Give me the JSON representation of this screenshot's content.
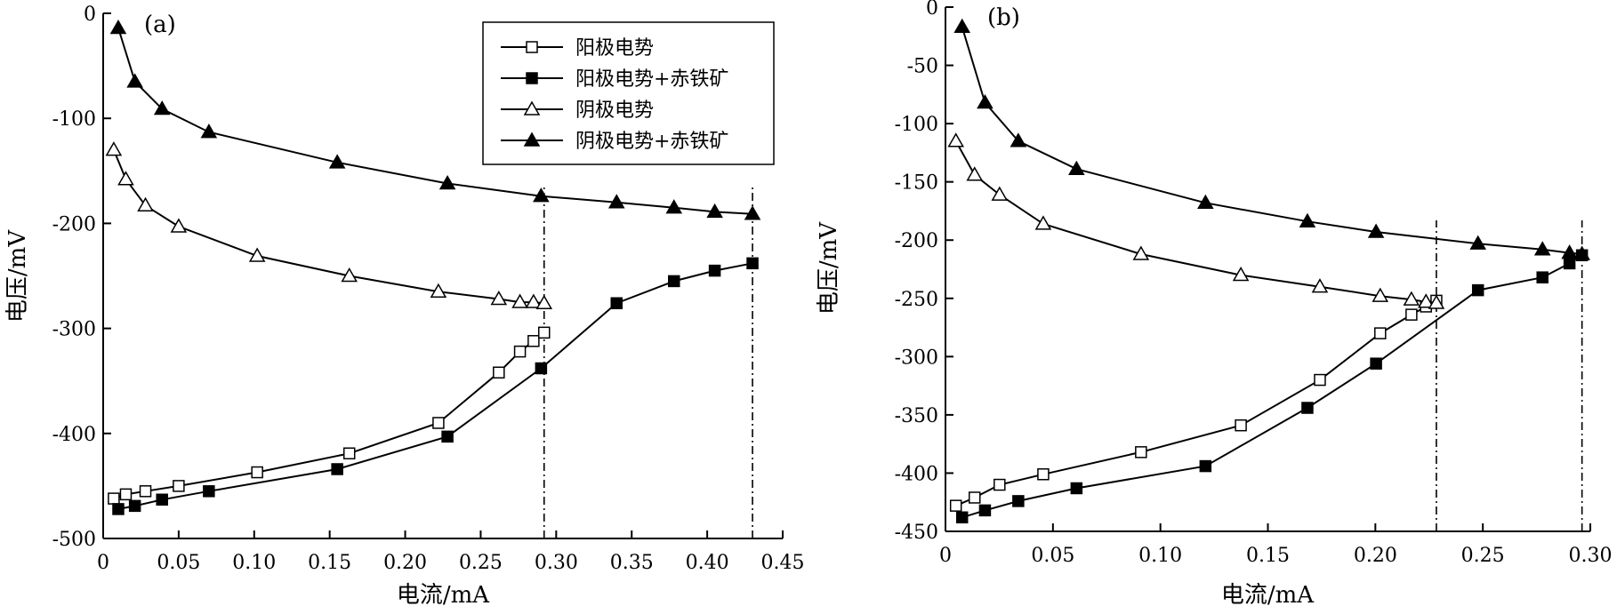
{
  "chart_data": [
    {
      "type": "line",
      "panel_label": "(a)",
      "xlabel": "电流/mA",
      "ylabel": "电压/mV",
      "xlim": [
        0,
        0.45
      ],
      "ylim": [
        -500,
        0
      ],
      "xticks": [
        "0",
        "0.05",
        "0.10",
        "0.15",
        "0.20",
        "0.25",
        "0.30",
        "0.35",
        "0.40",
        "0.45"
      ],
      "yticks": [
        "0",
        "-100",
        "-200",
        "-300",
        "-400",
        "-500"
      ],
      "legend": {
        "position": "top-right"
      },
      "series": [
        {
          "name": "阳极电势",
          "marker": "square-open",
          "points": [
            [
              0.007,
              -462
            ],
            [
              0.015,
              -458
            ],
            [
              0.028,
              -455
            ],
            [
              0.05,
              -450
            ],
            [
              0.102,
              -437
            ],
            [
              0.163,
              -419
            ],
            [
              0.222,
              -390
            ],
            [
              0.262,
              -342
            ],
            [
              0.276,
              -322
            ],
            [
              0.285,
              -312
            ],
            [
              0.292,
              -304
            ]
          ]
        },
        {
          "name": "阳极电势+赤铁矿",
          "marker": "square-filled",
          "points": [
            [
              0.01,
              -472
            ],
            [
              0.021,
              -469
            ],
            [
              0.039,
              -463
            ],
            [
              0.07,
              -455
            ],
            [
              0.155,
              -434
            ],
            [
              0.228,
              -403
            ],
            [
              0.29,
              -338
            ],
            [
              0.34,
              -276
            ],
            [
              0.378,
              -255
            ],
            [
              0.405,
              -245
            ],
            [
              0.43,
              -238
            ]
          ]
        },
        {
          "name": "阴极电势",
          "marker": "triangle-open",
          "points": [
            [
              0.007,
              -130
            ],
            [
              0.015,
              -158
            ],
            [
              0.028,
              -183
            ],
            [
              0.05,
              -203
            ],
            [
              0.102,
              -231
            ],
            [
              0.163,
              -250
            ],
            [
              0.222,
              -265
            ],
            [
              0.262,
              -272
            ],
            [
              0.276,
              -275
            ],
            [
              0.285,
              -275
            ],
            [
              0.292,
              -276
            ]
          ]
        },
        {
          "name": "阴极电势+赤铁矿",
          "marker": "triangle-filled",
          "points": [
            [
              0.01,
              -14
            ],
            [
              0.021,
              -65
            ],
            [
              0.039,
              -91
            ],
            [
              0.07,
              -113
            ],
            [
              0.155,
              -142
            ],
            [
              0.228,
              -162
            ],
            [
              0.29,
              -174
            ],
            [
              0.34,
              -180
            ],
            [
              0.378,
              -185
            ],
            [
              0.405,
              -189
            ],
            [
              0.43,
              -191
            ]
          ]
        }
      ],
      "reference_lines_x": [
        0.292,
        0.43
      ]
    },
    {
      "type": "line",
      "panel_label": "(b)",
      "xlabel": "电流/mA",
      "ylabel": "电压/mV",
      "xlim": [
        0,
        0.31
      ],
      "ylim": [
        -450,
        0
      ],
      "xticks": [
        "0",
        "0.05",
        "0.10",
        "0.15",
        "0.20",
        "0.25",
        "0.30"
      ],
      "yticks": [
        "0",
        "-50",
        "-100",
        "-150",
        "-200",
        "-250",
        "-300",
        "-350",
        "-400",
        "-450"
      ],
      "series": [
        {
          "name": "阳极电势",
          "marker": "square-open",
          "points": [
            [
              0.005,
              -428
            ],
            [
              0.014,
              -421
            ],
            [
              0.026,
              -410
            ],
            [
              0.047,
              -401
            ],
            [
              0.094,
              -382
            ],
            [
              0.142,
              -359
            ],
            [
              0.18,
              -320
            ],
            [
              0.209,
              -280
            ],
            [
              0.224,
              -264
            ],
            [
              0.231,
              -257
            ],
            [
              0.236,
              -252
            ]
          ]
        },
        {
          "name": "阳极电势+赤铁矿",
          "marker": "square-filled",
          "points": [
            [
              0.008,
              -438
            ],
            [
              0.019,
              -432
            ],
            [
              0.035,
              -424
            ],
            [
              0.063,
              -413
            ],
            [
              0.125,
              -394
            ],
            [
              0.174,
              -344
            ],
            [
              0.207,
              -306
            ],
            [
              0.256,
              -243
            ],
            [
              0.287,
              -232
            ],
            [
              0.3,
              -220
            ],
            [
              0.306,
              -213
            ]
          ]
        },
        {
          "name": "阴极电势",
          "marker": "triangle-open",
          "points": [
            [
              0.005,
              -115
            ],
            [
              0.014,
              -144
            ],
            [
              0.026,
              -161
            ],
            [
              0.047,
              -186
            ],
            [
              0.094,
              -212
            ],
            [
              0.142,
              -230
            ],
            [
              0.18,
              -240
            ],
            [
              0.209,
              -248
            ],
            [
              0.224,
              -251
            ],
            [
              0.231,
              -253
            ],
            [
              0.236,
              -254
            ]
          ]
        },
        {
          "name": "阴极电势+赤铁矿",
          "marker": "triangle-filled",
          "points": [
            [
              0.008,
              -17
            ],
            [
              0.019,
              -82
            ],
            [
              0.035,
              -115
            ],
            [
              0.063,
              -139
            ],
            [
              0.125,
              -168
            ],
            [
              0.174,
              -184
            ],
            [
              0.207,
              -193
            ],
            [
              0.256,
              -203
            ],
            [
              0.287,
              -208
            ],
            [
              0.3,
              -211
            ],
            [
              0.306,
              -212
            ]
          ]
        }
      ],
      "reference_lines_x": [
        0.236,
        0.306
      ]
    }
  ]
}
